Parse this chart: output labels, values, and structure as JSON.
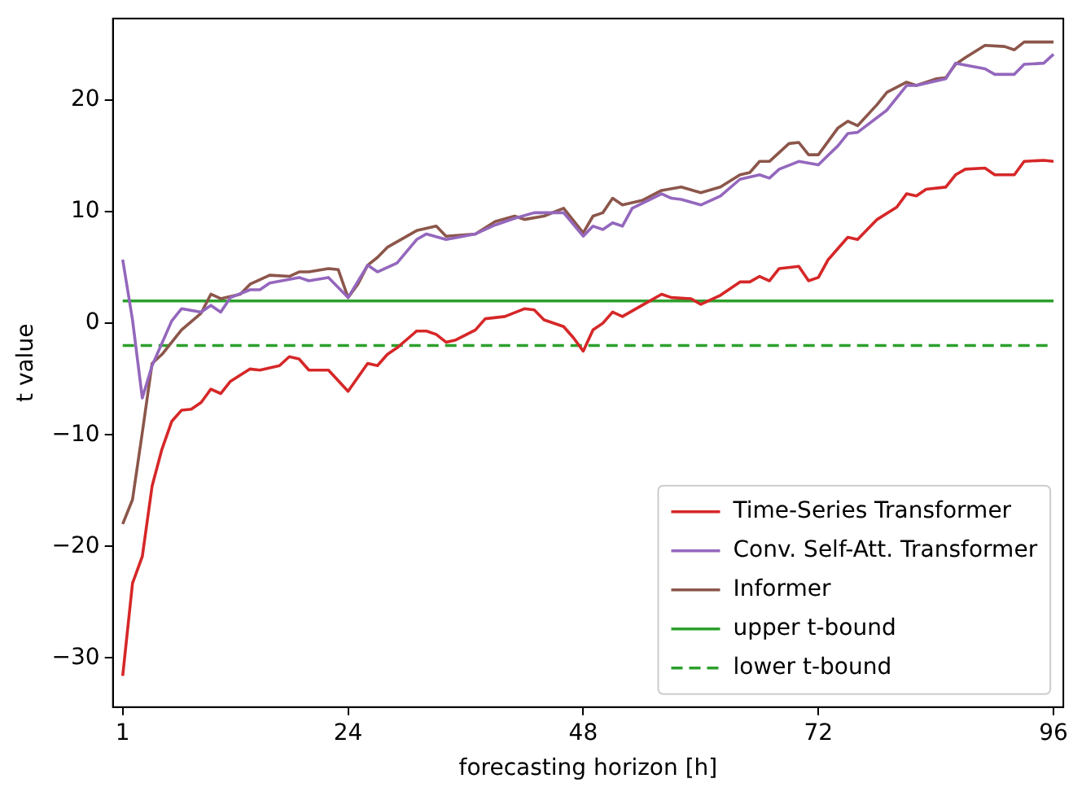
{
  "chart_data": {
    "type": "line",
    "xlabel": "forecasting horizon [h]",
    "ylabel": "t value",
    "xlim": [
      0,
      97
    ],
    "xticks": [
      1,
      24,
      48,
      72,
      96
    ],
    "ylim": [
      -34.4,
      27.3
    ],
    "yticks": [
      -30,
      -20,
      -10,
      0,
      10,
      20
    ],
    "grid": false,
    "legend": "bottom right",
    "marker": "none",
    "series": [
      {
        "name": "Time-Series Transformer",
        "color": "#d62728",
        "line_style": "solid",
        "x": [
          1,
          2,
          3,
          4,
          5,
          6,
          7,
          8,
          9,
          10,
          11,
          12,
          14,
          15,
          17,
          18,
          19,
          20,
          22,
          24,
          26,
          27,
          28,
          29,
          31,
          32,
          33,
          34,
          35,
          37,
          38,
          40,
          42,
          43,
          44,
          46,
          47,
          48,
          49,
          50,
          51,
          52,
          54,
          56,
          57,
          59,
          60,
          62,
          64,
          65,
          66,
          67,
          68,
          70,
          71,
          72,
          73,
          75,
          76,
          78,
          80,
          81,
          82,
          83,
          85,
          86,
          87,
          89,
          90,
          92,
          93,
          95,
          96
        ],
        "values": [
          -31.6,
          -23.3,
          -20.9,
          -14.6,
          -11.3,
          -8.8,
          -7.8,
          -7.7,
          -7.1,
          -5.9,
          -6.3,
          -5.2,
          -4.1,
          -4.2,
          -3.8,
          -3.0,
          -3.2,
          -4.2,
          -4.2,
          -6.1,
          -3.6,
          -3.8,
          -2.8,
          -2.2,
          -0.7,
          -0.7,
          -1.0,
          -1.7,
          -1.5,
          -0.6,
          0.4,
          0.6,
          1.3,
          1.2,
          0.3,
          -0.3,
          -1.3,
          -2.5,
          -0.6,
          0,
          1.0,
          0.6,
          1.6,
          2.6,
          2.3,
          2.2,
          1.7,
          2.5,
          3.7,
          3.7,
          4.2,
          3.8,
          4.9,
          5.1,
          3.8,
          4.1,
          5.7,
          7.7,
          7.5,
          9.3,
          10.4,
          11.6,
          11.4,
          12.0,
          12.2,
          13.3,
          13.8,
          13.9,
          13.3,
          13.3,
          14.5,
          14.6,
          14.5
        ]
      },
      {
        "name": "Conv. Self-Att. Transformer",
        "color": "#9467bd",
        "line_style": "solid",
        "x": [
          1,
          2,
          3,
          4,
          6,
          7,
          9,
          10,
          11,
          12,
          14,
          15,
          16,
          19,
          20,
          22,
          24,
          26,
          27,
          29,
          31,
          32,
          34,
          37,
          39,
          41,
          43,
          46,
          48,
          49,
          50,
          51,
          52,
          53,
          56,
          57,
          58,
          60,
          62,
          64,
          66,
          67,
          68,
          70,
          72,
          74,
          75,
          76,
          79,
          81,
          82,
          85,
          86,
          89,
          90,
          92,
          93,
          95,
          96
        ],
        "values": [
          5.7,
          0.3,
          -6.7,
          -3.8,
          0.2,
          1.3,
          1.0,
          1.6,
          1.0,
          2.3,
          3.0,
          3.0,
          3.6,
          4.1,
          3.8,
          4.1,
          2.3,
          5.2,
          4.6,
          5.4,
          7.5,
          8.0,
          7.5,
          8.0,
          8.8,
          9.4,
          9.9,
          9.9,
          7.8,
          8.7,
          8.4,
          9.0,
          8.7,
          10.3,
          11.6,
          11.2,
          11.1,
          10.6,
          11.4,
          12.9,
          13.3,
          13.0,
          13.8,
          14.5,
          14.2,
          15.9,
          17.0,
          17.1,
          19.1,
          21.3,
          21.3,
          21.9,
          23.3,
          22.8,
          22.3,
          22.3,
          23.2,
          23.3,
          24.1
        ]
      },
      {
        "name": "Informer",
        "color": "#8c564b",
        "line_style": "solid",
        "x": [
          1,
          2,
          3,
          4,
          5,
          7,
          9,
          10,
          11,
          13,
          14,
          16,
          18,
          19,
          20,
          22,
          23,
          24,
          25,
          26,
          27,
          28,
          31,
          33,
          34,
          37,
          39,
          41,
          42,
          44,
          46,
          48,
          49,
          50,
          51,
          52,
          54,
          56,
          58,
          60,
          62,
          64,
          65,
          66,
          67,
          69,
          70,
          71,
          72,
          74,
          75,
          76,
          78,
          79,
          81,
          82,
          84,
          85,
          86,
          87,
          89,
          91,
          92,
          93,
          95,
          96
        ],
        "values": [
          -18.0,
          -15.8,
          -9.8,
          -3.6,
          -2.8,
          -0.6,
          0.9,
          2.6,
          2.2,
          2.6,
          3.5,
          4.3,
          4.2,
          4.6,
          4.6,
          4.9,
          4.8,
          2.3,
          3.5,
          5.2,
          5.9,
          6.8,
          8.3,
          8.7,
          7.8,
          8.0,
          9.1,
          9.6,
          9.3,
          9.6,
          10.3,
          8.1,
          9.6,
          9.9,
          11.2,
          10.6,
          11.0,
          11.9,
          12.2,
          11.7,
          12.2,
          13.3,
          13.5,
          14.5,
          14.5,
          16.1,
          16.2,
          15.1,
          15.1,
          17.5,
          18.1,
          17.7,
          19.6,
          20.7,
          21.6,
          21.3,
          21.9,
          22.0,
          23.2,
          23.8,
          24.9,
          24.8,
          24.5,
          25.2,
          25.2,
          25.2
        ]
      },
      {
        "name": "upper t-bound",
        "color": "#2ca02c",
        "line_style": "solid",
        "x": [
          1,
          96
        ],
        "values": [
          2,
          2
        ]
      },
      {
        "name": "lower t-bound",
        "color": "#2ca02c",
        "line_style": "dashed",
        "x": [
          1,
          96
        ],
        "values": [
          -2,
          -2
        ]
      }
    ]
  }
}
